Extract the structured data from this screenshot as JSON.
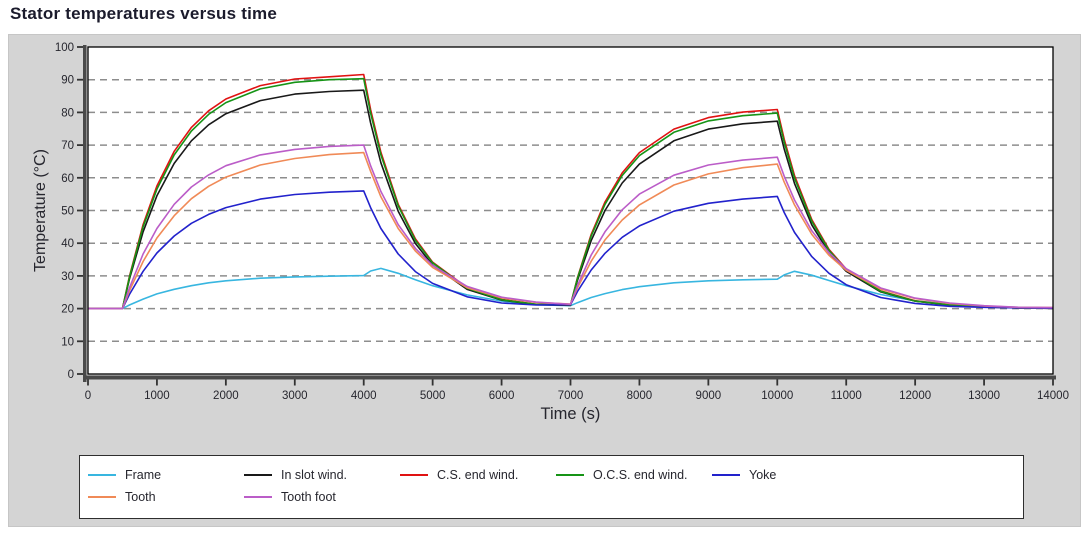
{
  "page": {
    "title": "Stator temperatures versus time"
  },
  "ui_colors": {
    "panel_bg": "#d4d4d4",
    "plot_bg": "#ffffff",
    "plot_border": "#000000",
    "grid": "#8d8d8d",
    "axis": "#4a4a4a",
    "tick": "#333333",
    "text": "#26262e",
    "title_text": "#1b1b2c",
    "legend_border": "#2e2e2e"
  },
  "chart_data": {
    "type": "line",
    "title": "Stator temperatures versus time",
    "xlabel": "Time (s)",
    "ylabel": "Temperature (°C)",
    "xlim": [
      0,
      14000
    ],
    "ylim": [
      0,
      100
    ],
    "xticks": [
      0,
      1000,
      2000,
      3000,
      4000,
      5000,
      6000,
      7000,
      8000,
      9000,
      10000,
      11000,
      12000,
      13000,
      14000
    ],
    "yticks": [
      0,
      10,
      20,
      30,
      40,
      50,
      60,
      70,
      80,
      90,
      100
    ],
    "grid": "horizontal-dashed",
    "legend_position": "bottom",
    "x": [
      0,
      500,
      600,
      800,
      1000,
      1250,
      1500,
      1750,
      2000,
      2500,
      3000,
      3500,
      4000,
      4100,
      4250,
      4500,
      4750,
      5000,
      5500,
      6000,
      6500,
      7000,
      7100,
      7300,
      7500,
      7750,
      8000,
      8500,
      9000,
      9500,
      10000,
      10100,
      10250,
      10500,
      10750,
      11000,
      11500,
      12000,
      12500,
      13000,
      13500,
      14000
    ],
    "series": [
      {
        "name": "Frame",
        "color": "#38b6e0",
        "values": [
          20,
          20,
          21.1,
          22.9,
          24.5,
          25.9,
          27,
          27.9,
          28.5,
          29.3,
          29.7,
          29.9,
          30.1,
          31.5,
          32.3,
          30.8,
          28.8,
          27,
          24.2,
          22.3,
          21.2,
          20.9,
          21.8,
          23.4,
          24.6,
          25.8,
          26.7,
          27.9,
          28.5,
          28.8,
          29,
          30.3,
          31.4,
          30.2,
          28.6,
          27,
          24.3,
          22.4,
          21.3,
          20.7,
          20.4,
          20.2
        ]
      },
      {
        "name": "In slot wind.",
        "color": "#191919",
        "values": [
          20,
          20,
          29,
          43.5,
          54.5,
          64.4,
          71.3,
          76.2,
          79.6,
          83.6,
          85.6,
          86.4,
          86.8,
          76.8,
          64.6,
          49.8,
          39.9,
          33.3,
          25.9,
          22.6,
          21.2,
          21,
          28.6,
          40.8,
          50,
          58.4,
          64.2,
          71.3,
          74.9,
          76.5,
          77.3,
          68.8,
          58.3,
          45.6,
          37.1,
          31.4,
          25.1,
          22.3,
          21,
          20.5,
          20.2,
          20.1
        ]
      },
      {
        "name": "C.S. end wind.",
        "color": "#e01212",
        "values": [
          20,
          20,
          29.8,
          45.7,
          57.5,
          68.1,
          75.4,
          80.5,
          84.1,
          88.2,
          90.2,
          90.9,
          91.6,
          80.9,
          67.8,
          51.9,
          41.3,
          34.2,
          26.4,
          22.8,
          21.3,
          21.1,
          29.4,
          42.7,
          52.6,
          61.5,
          67.7,
          74.9,
          78.4,
          80.1,
          80.9,
          71.8,
          60.7,
          47.2,
          38.1,
          32.1,
          25.4,
          22.4,
          21.1,
          20.5,
          20.2,
          20.1
        ]
      },
      {
        "name": "O.C.S. end wind.",
        "color": "#169416",
        "values": [
          20,
          20,
          29.5,
          45,
          56.5,
          67,
          74.3,
          79.4,
          83,
          87.2,
          89.2,
          90,
          90.3,
          79.8,
          67,
          51.4,
          40.9,
          34,
          26.2,
          22.7,
          21.3,
          21.1,
          29.2,
          42.2,
          51.9,
          60.7,
          66.8,
          73.9,
          77.4,
          79,
          79.8,
          70.9,
          59.9,
          46.7,
          37.8,
          31.9,
          25.3,
          22.3,
          21.1,
          20.5,
          20.2,
          20.1
        ]
      },
      {
        "name": "Yoke",
        "color": "#2222cc",
        "values": [
          20,
          20,
          24.3,
          31.4,
          37,
          42.2,
          46.1,
          48.8,
          50.9,
          53.5,
          54.9,
          55.6,
          56,
          50.9,
          44.5,
          36.7,
          31.3,
          27.7,
          23.6,
          21.7,
          21.1,
          21.2,
          25.2,
          31.8,
          36.9,
          41.8,
          45.3,
          49.8,
          52.2,
          53.5,
          54.3,
          49.4,
          43.3,
          35.9,
          30.8,
          27.3,
          23.4,
          21.6,
          20.7,
          20.4,
          20.2,
          20.1
        ]
      },
      {
        "name": "Tooth",
        "color": "#f08a57",
        "values": [
          20,
          20,
          25.4,
          34.4,
          41.6,
          48.4,
          53.6,
          57.4,
          60.2,
          63.9,
          65.9,
          67.1,
          67.7,
          62,
          54.2,
          44.5,
          37.6,
          32.6,
          26.4,
          23.3,
          21.9,
          21.4,
          26.3,
          34.5,
          41,
          47.1,
          51.7,
          57.8,
          61.2,
          63.1,
          64.2,
          58.7,
          51.7,
          42.7,
          36.3,
          31.7,
          26,
          23.1,
          21.6,
          20.8,
          20.4,
          20.3
        ]
      },
      {
        "name": "Tooth foot",
        "color": "#bb5dc8",
        "values": [
          20,
          20,
          26.3,
          36.7,
          44.5,
          51.9,
          57.2,
          60.9,
          63.7,
          67,
          68.7,
          69.6,
          70,
          63.7,
          55.8,
          45.7,
          38.4,
          33.2,
          26.8,
          23.5,
          22,
          21.3,
          27,
          36.4,
          43.5,
          50.2,
          55,
          60.8,
          63.9,
          65.4,
          66.3,
          60.5,
          53.2,
          43.8,
          37.1,
          32.2,
          26.3,
          23.2,
          21.7,
          20.9,
          20.4,
          20.3
        ]
      }
    ]
  }
}
